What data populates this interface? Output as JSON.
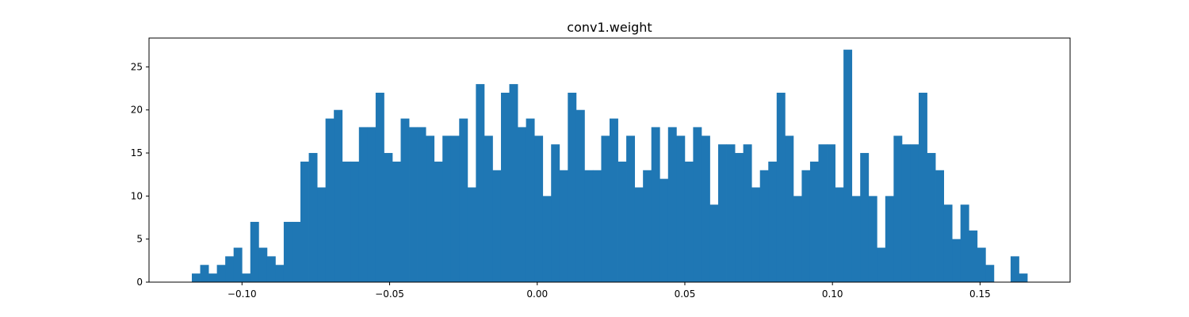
{
  "chart_data": {
    "type": "bar",
    "title": "conv1.weight",
    "xlabel": "",
    "ylabel": "",
    "xlim": [
      -0.1315,
      0.1805
    ],
    "ylim": [
      0,
      28.35
    ],
    "x_ticks": [
      -0.1,
      -0.05,
      0.0,
      0.05,
      0.1,
      0.15
    ],
    "x_tick_labels": [
      "−0.10",
      "−0.05",
      "0.00",
      "0.05",
      "0.10",
      "0.15"
    ],
    "y_ticks": [
      0,
      5,
      10,
      15,
      20,
      25
    ],
    "y_tick_labels": [
      "0",
      "5",
      "10",
      "15",
      "20",
      "25"
    ],
    "bin_start": -0.117,
    "bin_width": 0.00283,
    "values": [
      1,
      2,
      1,
      2,
      3,
      4,
      1,
      7,
      4,
      3,
      2,
      7,
      7,
      14,
      15,
      11,
      19,
      20,
      14,
      14,
      18,
      18,
      22,
      15,
      14,
      19,
      18,
      18,
      17,
      14,
      17,
      17,
      19,
      11,
      23,
      17,
      13,
      22,
      23,
      18,
      19,
      17,
      10,
      16,
      13,
      22,
      20,
      13,
      13,
      17,
      19,
      14,
      17,
      11,
      13,
      18,
      12,
      18,
      17,
      14,
      18,
      17,
      9,
      16,
      16,
      15,
      16,
      11,
      13,
      14,
      22,
      17,
      10,
      13,
      14,
      16,
      16,
      11,
      27,
      10,
      15,
      10,
      4,
      10,
      17,
      16,
      16,
      22,
      15,
      13,
      9,
      5,
      9,
      6,
      4,
      2,
      0,
      0,
      3,
      1
    ],
    "grid": false,
    "color": "#1f77b4"
  }
}
